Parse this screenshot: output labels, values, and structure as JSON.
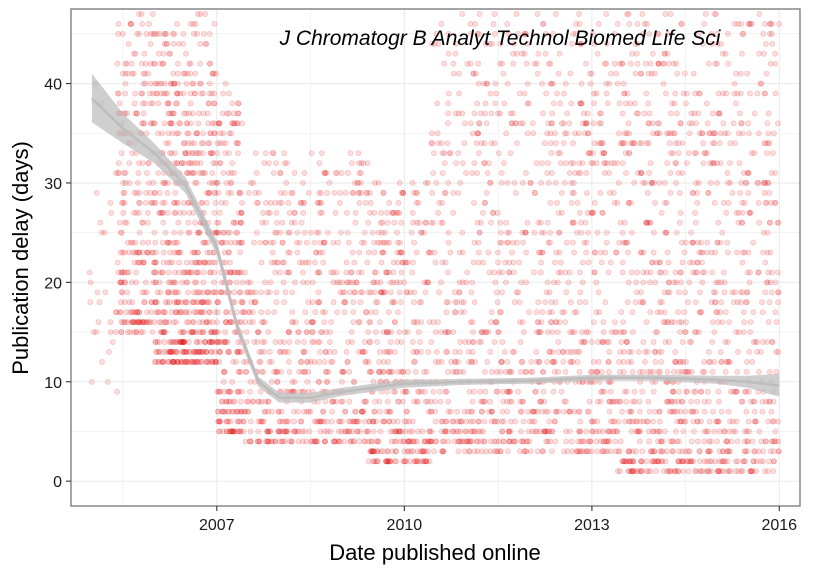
{
  "chart_data": {
    "type": "scatter",
    "title": "",
    "annotation": "J Chromatogr B Analyt Technol Biomed Life Sci",
    "xlabel": "Date published online",
    "ylabel": "Publication delay (days)",
    "xlim": [
      "2004-09-01",
      "2016-05-01"
    ],
    "ylim": [
      -2.5,
      47.5
    ],
    "x_ticks": [
      "2007",
      "2010",
      "2013",
      "2016"
    ],
    "x_tick_dates": [
      "2007-01-01",
      "2010-01-01",
      "2013-01-01",
      "2016-01-01"
    ],
    "y_ticks": [
      0,
      10,
      20,
      30,
      40
    ],
    "grid": true,
    "colors": {
      "points": "#e41a1c",
      "trend_line": "#bdbdbd",
      "ribbon": "#bfbfbf",
      "grid": "#ebebeb",
      "panel_border": "#7f7f7f"
    },
    "point_opacity": 0.15,
    "point_clusters": [
      {
        "from": "2004-12-15",
        "to": "2005-06-01",
        "ylim": [
          9,
          45
        ],
        "n": 30
      },
      {
        "from": "2005-06-01",
        "to": "2006-01-01",
        "ylim": [
          15,
          47
        ],
        "n": 250
      },
      {
        "from": "2006-01-01",
        "to": "2007-01-01",
        "ylim": [
          12,
          47
        ],
        "n": 650
      },
      {
        "from": "2007-01-01",
        "to": "2007-06-01",
        "ylim": [
          5,
          40
        ],
        "n": 260
      },
      {
        "from": "2007-06-01",
        "to": "2009-06-01",
        "ylim": [
          4,
          33
        ],
        "n": 620
      },
      {
        "from": "2009-06-01",
        "to": "2010-06-01",
        "ylim": [
          2,
          30
        ],
        "n": 380
      },
      {
        "from": "2010-06-01",
        "to": "2013-06-01",
        "ylim": [
          3,
          47
        ],
        "n": 1050
      },
      {
        "from": "2013-06-01",
        "to": "2015-12-31",
        "ylim": [
          1,
          47
        ],
        "n": 1050
      }
    ],
    "smooth": [
      {
        "x": "2005-01-01",
        "y": 38.5,
        "lo": 36.1,
        "hi": 41.0
      },
      {
        "x": "2005-07-01",
        "y": 35.5,
        "lo": 34.0,
        "hi": 37.0
      },
      {
        "x": "2006-01-01",
        "y": 33.0,
        "lo": 32.0,
        "hi": 34.0
      },
      {
        "x": "2006-07-01",
        "y": 29.8,
        "lo": 29.0,
        "hi": 30.6
      },
      {
        "x": "2007-01-01",
        "y": 23.5,
        "lo": 22.8,
        "hi": 24.2
      },
      {
        "x": "2007-05-01",
        "y": 15.5,
        "lo": 14.9,
        "hi": 16.1
      },
      {
        "x": "2007-09-01",
        "y": 10.0,
        "lo": 9.5,
        "hi": 10.5
      },
      {
        "x": "2008-01-01",
        "y": 8.4,
        "lo": 7.9,
        "hi": 8.9
      },
      {
        "x": "2008-07-01",
        "y": 8.4,
        "lo": 7.9,
        "hi": 8.9
      },
      {
        "x": "2009-01-01",
        "y": 9.0,
        "lo": 8.6,
        "hi": 9.4
      },
      {
        "x": "2009-07-01",
        "y": 9.4,
        "lo": 9.0,
        "hi": 9.8
      },
      {
        "x": "2010-01-01",
        "y": 9.8,
        "lo": 9.4,
        "hi": 10.2
      },
      {
        "x": "2011-01-01",
        "y": 10.0,
        "lo": 9.7,
        "hi": 10.3
      },
      {
        "x": "2012-01-01",
        "y": 10.1,
        "lo": 9.8,
        "hi": 10.4
      },
      {
        "x": "2013-01-01",
        "y": 10.4,
        "lo": 10.1,
        "hi": 10.7
      },
      {
        "x": "2014-01-01",
        "y": 10.4,
        "lo": 10.1,
        "hi": 10.7
      },
      {
        "x": "2015-01-01",
        "y": 10.2,
        "lo": 9.8,
        "hi": 10.6
      },
      {
        "x": "2015-07-01",
        "y": 10.0,
        "lo": 9.4,
        "hi": 10.6
      },
      {
        "x": "2016-01-01",
        "y": 9.6,
        "lo": 8.5,
        "hi": 10.8
      }
    ]
  }
}
